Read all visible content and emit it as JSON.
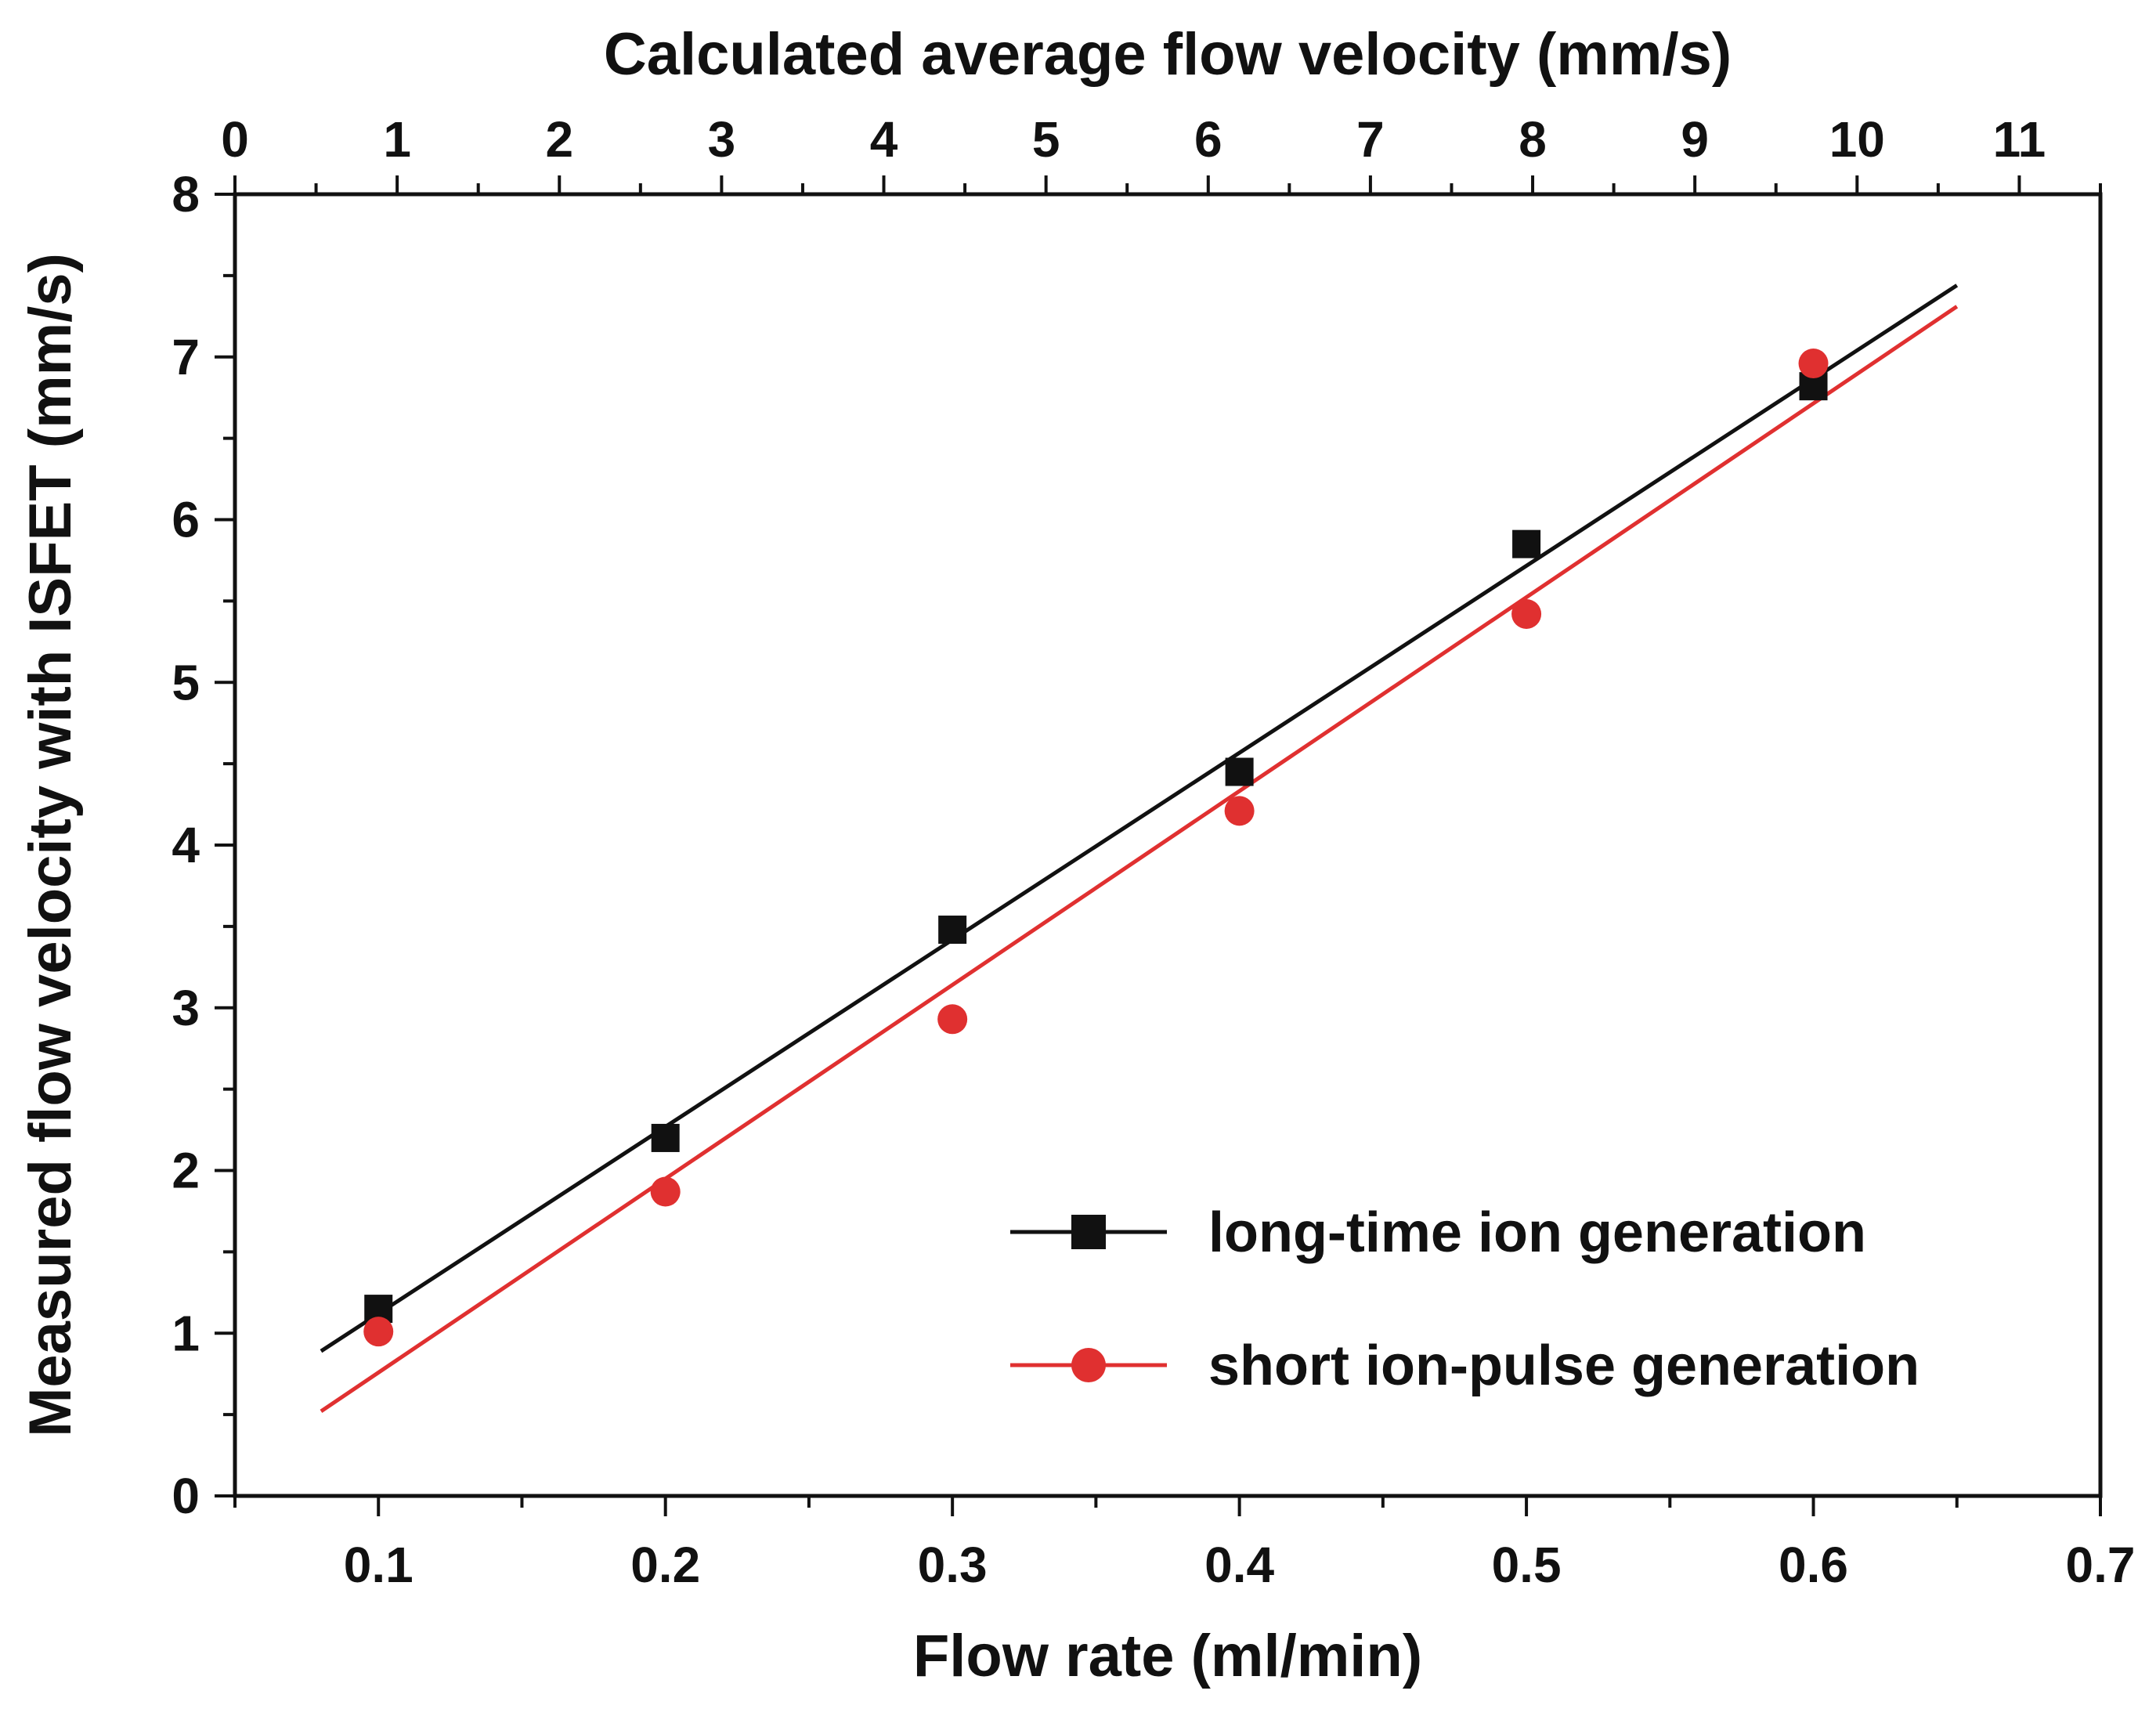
{
  "chart_data": {
    "type": "scatter",
    "xlabel": "Flow rate (ml/min)",
    "ylabel": "Measured flow velocity with ISFET (mm/s)",
    "x2label": "Calculated average flow velocity (mm/s)",
    "xlim": [
      0.05,
      0.7
    ],
    "ylim": [
      0,
      8
    ],
    "x2lim": [
      0,
      11.5
    ],
    "x_ticks": [
      0.1,
      0.2,
      0.3,
      0.4,
      0.5,
      0.6,
      0.7
    ],
    "x_tick_labels": [
      "0.1",
      "0.2",
      "0.3",
      "0.4",
      "0.5",
      "0.6",
      "0.7"
    ],
    "y_ticks": [
      0,
      1,
      2,
      3,
      4,
      5,
      6,
      7,
      8
    ],
    "y_tick_labels": [
      "0",
      "1",
      "2",
      "3",
      "4",
      "5",
      "6",
      "7",
      "8"
    ],
    "x2_ticks": [
      0,
      1,
      2,
      3,
      4,
      5,
      6,
      7,
      8,
      9,
      10,
      11
    ],
    "x2_tick_labels": [
      "0",
      "1",
      "2",
      "3",
      "4",
      "5",
      "6",
      "7",
      "8",
      "9",
      "10",
      "11"
    ],
    "grid": false,
    "legend_position": "bottom-right",
    "series": [
      {
        "name": "long-time ion generation",
        "marker": "square",
        "color": "#111111",
        "x": [
          0.1,
          0.2,
          0.3,
          0.4,
          0.5,
          0.6
        ],
        "y": [
          1.15,
          2.2,
          3.48,
          4.45,
          5.85,
          6.82
        ],
        "fit": {
          "x": [
            0.08,
            0.65
          ],
          "y": [
            0.89,
            7.44
          ]
        }
      },
      {
        "name": "short ion-pulse generation",
        "marker": "circle",
        "color": "#e03030",
        "x": [
          0.1,
          0.2,
          0.3,
          0.4,
          0.5,
          0.6
        ],
        "y": [
          1.01,
          1.87,
          2.93,
          4.21,
          5.42,
          6.96
        ],
        "fit": {
          "x": [
            0.08,
            0.65
          ],
          "y": [
            0.52,
            7.31
          ]
        }
      }
    ]
  }
}
